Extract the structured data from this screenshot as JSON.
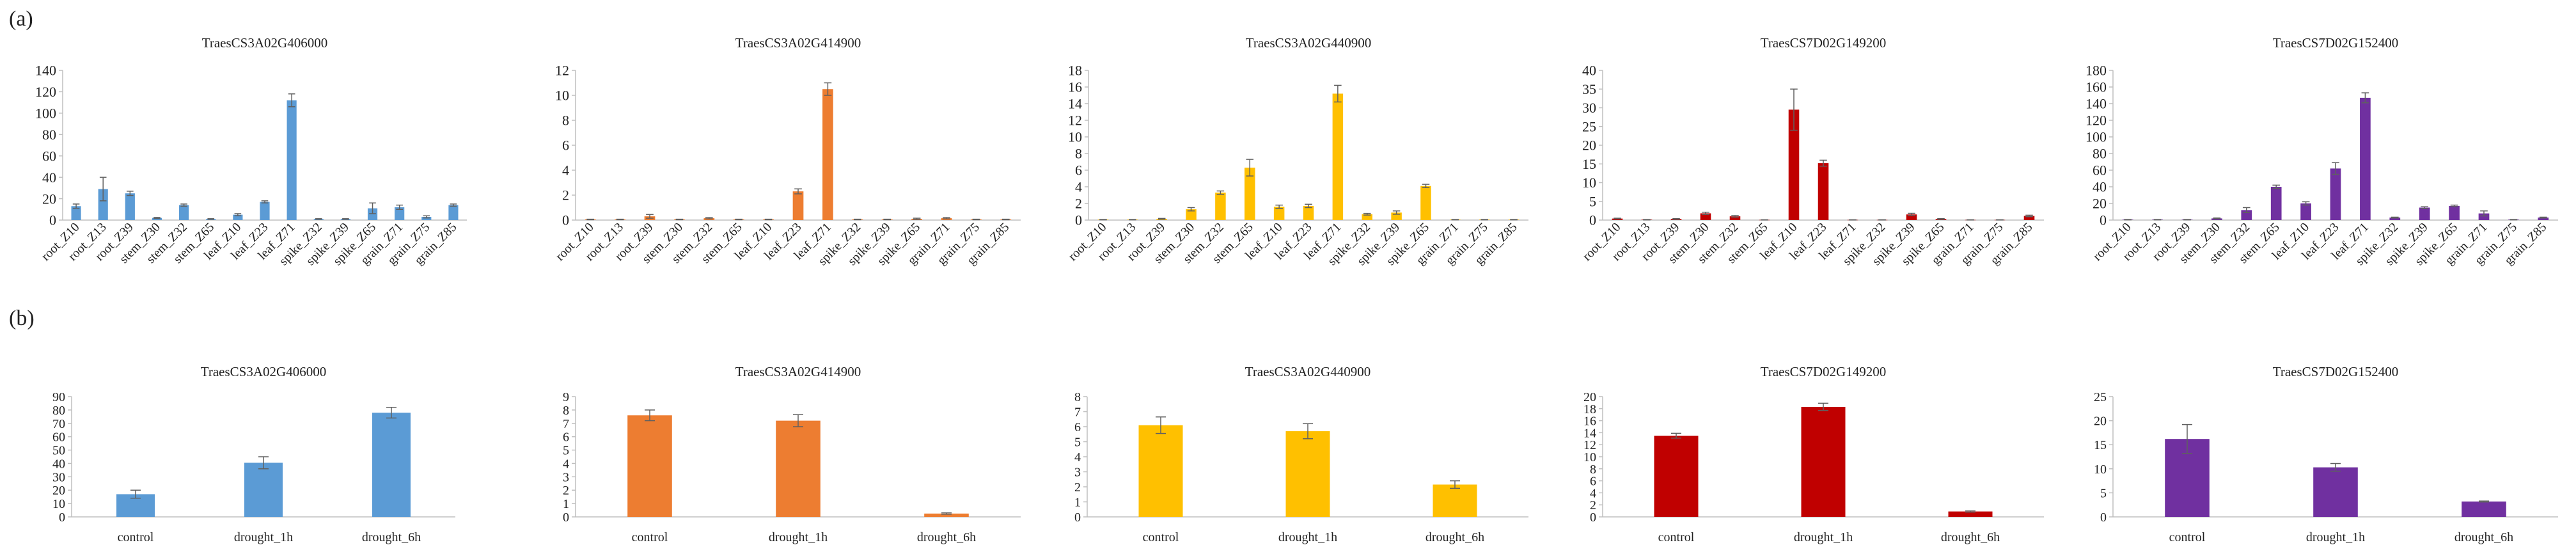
{
  "panels": [
    {
      "label": "(a)"
    },
    {
      "label": "(b)"
    }
  ],
  "colors": {
    "blue": "#5b9bd5",
    "orange": "#ed7d31",
    "yellow": "#ffc000",
    "red": "#c00000",
    "purple": "#7030a0",
    "axis": "#bfbfbf",
    "error": "#606060"
  },
  "chart_data": [
    {
      "type": "bar",
      "panel": "a",
      "title": "TraesCS3A02G406000",
      "color": "#5b9bd5",
      "categories": [
        "root_Z10",
        "root_Z13",
        "root_Z39",
        "stem_Z30",
        "stem_Z32",
        "stem_Z65",
        "leaf_Z10",
        "leaf_Z23",
        "leaf_Z71",
        "spike_Z32",
        "spike_Z39",
        "spike_Z65",
        "grain_Z71",
        "grain_Z75",
        "grain_Z85"
      ],
      "values": [
        13,
        29,
        25,
        2,
        14,
        1,
        5,
        17,
        112,
        1,
        1,
        11,
        12,
        3,
        14
      ],
      "errors": [
        2,
        11,
        2,
        0.5,
        1,
        0.3,
        1,
        1,
        6,
        0.3,
        0.3,
        5,
        2,
        1,
        1
      ],
      "ylim": [
        0,
        140
      ],
      "yticks": [
        0,
        20,
        40,
        60,
        80,
        100,
        120,
        140
      ],
      "xlabel": "",
      "ylabel": ""
    },
    {
      "type": "bar",
      "panel": "a",
      "title": "TraesCS3A02G414900",
      "color": "#ed7d31",
      "categories": [
        "root_Z10",
        "root_Z13",
        "root_Z39",
        "stem_Z30",
        "stem_Z32",
        "stem_Z65",
        "leaf_Z10",
        "leaf_Z23",
        "leaf_Z71",
        "spike_Z32",
        "spike_Z39",
        "spike_Z65",
        "grain_Z71",
        "grain_Z75",
        "grain_Z85"
      ],
      "values": [
        0.05,
        0.05,
        0.3,
        0.05,
        0.15,
        0.05,
        0.05,
        2.3,
        10.5,
        0.05,
        0.05,
        0.1,
        0.15,
        0.05,
        0.05
      ],
      "errors": [
        0.02,
        0.02,
        0.15,
        0.02,
        0.05,
        0.02,
        0.02,
        0.2,
        0.5,
        0.02,
        0.02,
        0.05,
        0.05,
        0.02,
        0.02
      ],
      "ylim": [
        0,
        12
      ],
      "yticks": [
        0,
        2,
        4,
        6,
        8,
        10,
        12
      ],
      "xlabel": "",
      "ylabel": ""
    },
    {
      "type": "bar",
      "panel": "a",
      "title": "TraesCS3A02G440900",
      "color": "#ffc000",
      "categories": [
        "root_Z10",
        "root_Z13",
        "root_Z39",
        "stem_Z30",
        "stem_Z32",
        "stem_Z65",
        "leaf_Z10",
        "leaf_Z23",
        "leaf_Z71",
        "spike_Z32",
        "spike_Z39",
        "spike_Z65",
        "grain_Z71",
        "grain_Z75",
        "grain_Z85"
      ],
      "values": [
        0.05,
        0.05,
        0.15,
        1.3,
        3.3,
        6.3,
        1.6,
        1.7,
        15.2,
        0.7,
        0.9,
        4.1,
        0.05,
        0.05,
        0.05
      ],
      "errors": [
        0.02,
        0.02,
        0.05,
        0.2,
        0.2,
        1.0,
        0.2,
        0.2,
        1.0,
        0.1,
        0.2,
        0.2,
        0.02,
        0.02,
        0.02
      ],
      "ylim": [
        0,
        18
      ],
      "yticks": [
        0,
        2,
        4,
        6,
        8,
        10,
        12,
        14,
        16,
        18
      ],
      "xlabel": "",
      "ylabel": ""
    },
    {
      "type": "bar",
      "panel": "a",
      "title": "TraesCS7D02G149200",
      "color": "#c00000",
      "categories": [
        "root_Z10",
        "root_Z13",
        "root_Z39",
        "stem_Z30",
        "stem_Z32",
        "stem_Z65",
        "leaf_Z10",
        "leaf_Z23",
        "leaf_Z71",
        "spike_Z32",
        "spike_Z39",
        "spike_Z65",
        "grain_Z71",
        "grain_Z75",
        "grain_Z85"
      ],
      "values": [
        0.4,
        0.1,
        0.3,
        1.8,
        1.0,
        0.05,
        29.5,
        15.2,
        0.05,
        0.05,
        1.5,
        0.3,
        0.05,
        0.05,
        1.1
      ],
      "errors": [
        0.1,
        0.05,
        0.1,
        0.3,
        0.2,
        0.02,
        5.5,
        0.8,
        0.02,
        0.02,
        0.3,
        0.1,
        0.02,
        0.02,
        0.2
      ],
      "ylim": [
        0,
        40
      ],
      "yticks": [
        0,
        5,
        10,
        15,
        20,
        25,
        30,
        35,
        40
      ],
      "xlabel": "",
      "ylabel": ""
    },
    {
      "type": "bar",
      "panel": "a",
      "title": "TraesCS7D02G152400",
      "color": "#7030a0",
      "categories": [
        "root_Z10",
        "root_Z13",
        "root_Z39",
        "stem_Z30",
        "stem_Z32",
        "stem_Z65",
        "leaf_Z10",
        "leaf_Z23",
        "leaf_Z71",
        "spike_Z32",
        "spike_Z39",
        "spike_Z65",
        "grain_Z71",
        "grain_Z75",
        "grain_Z85"
      ],
      "values": [
        0.5,
        0.5,
        0.5,
        2,
        12,
        40,
        20,
        62,
        147,
        3,
        15,
        17,
        8,
        0.5,
        3
      ],
      "errors": [
        0.2,
        0.2,
        0.2,
        0.5,
        3,
        2,
        2,
        7,
        6,
        0.5,
        1,
        1,
        3,
        0.2,
        0.5
      ],
      "ylim": [
        0,
        180
      ],
      "yticks": [
        0,
        20,
        40,
        60,
        80,
        100,
        120,
        140,
        160,
        180
      ],
      "xlabel": "",
      "ylabel": ""
    },
    {
      "type": "bar",
      "panel": "b",
      "title": "TraesCS3A02G406000",
      "color": "#5b9bd5",
      "categories": [
        "control",
        "drought_1h",
        "drought_6h"
      ],
      "values": [
        17,
        40.5,
        78
      ],
      "errors": [
        3,
        4.5,
        4
      ],
      "ylim": [
        0,
        90
      ],
      "yticks": [
        0,
        10,
        20,
        30,
        40,
        50,
        60,
        70,
        80,
        90
      ],
      "xlabel": "",
      "ylabel": ""
    },
    {
      "type": "bar",
      "panel": "b",
      "title": "TraesCS3A02G414900",
      "color": "#ed7d31",
      "categories": [
        "control",
        "drought_1h",
        "drought_6h"
      ],
      "values": [
        7.6,
        7.2,
        0.25
      ],
      "errors": [
        0.4,
        0.45,
        0.05
      ],
      "ylim": [
        0,
        9
      ],
      "yticks": [
        0,
        1,
        2,
        3,
        4,
        5,
        6,
        7,
        8,
        9
      ],
      "xlabel": "",
      "ylabel": ""
    },
    {
      "type": "bar",
      "panel": "b",
      "title": "TraesCS3A02G440900",
      "color": "#ffc000",
      "categories": [
        "control",
        "drought_1h",
        "drought_6h"
      ],
      "values": [
        6.1,
        5.7,
        2.15
      ],
      "errors": [
        0.55,
        0.5,
        0.25
      ],
      "ylim": [
        0,
        8
      ],
      "yticks": [
        0,
        1,
        2,
        3,
        4,
        5,
        6,
        7,
        8
      ],
      "xlabel": "",
      "ylabel": ""
    },
    {
      "type": "bar",
      "panel": "b",
      "title": "TraesCS7D02G149200",
      "color": "#c00000",
      "categories": [
        "control",
        "drought_1h",
        "drought_6h"
      ],
      "values": [
        13.5,
        18.3,
        0.9
      ],
      "errors": [
        0.4,
        0.6,
        0.1
      ],
      "ylim": [
        0,
        20
      ],
      "yticks": [
        0,
        2,
        4,
        6,
        8,
        10,
        12,
        14,
        16,
        18,
        20
      ],
      "xlabel": "",
      "ylabel": ""
    },
    {
      "type": "bar",
      "panel": "b",
      "title": "TraesCS7D02G152400",
      "color": "#7030a0",
      "categories": [
        "control",
        "drought_1h",
        "drought_6h"
      ],
      "values": [
        16.2,
        10.3,
        3.2
      ],
      "errors": [
        3,
        0.8,
        0.1
      ],
      "ylim": [
        0,
        25
      ],
      "yticks": [
        0,
        5,
        10,
        15,
        20,
        25
      ],
      "xlabel": "",
      "ylabel": ""
    }
  ]
}
